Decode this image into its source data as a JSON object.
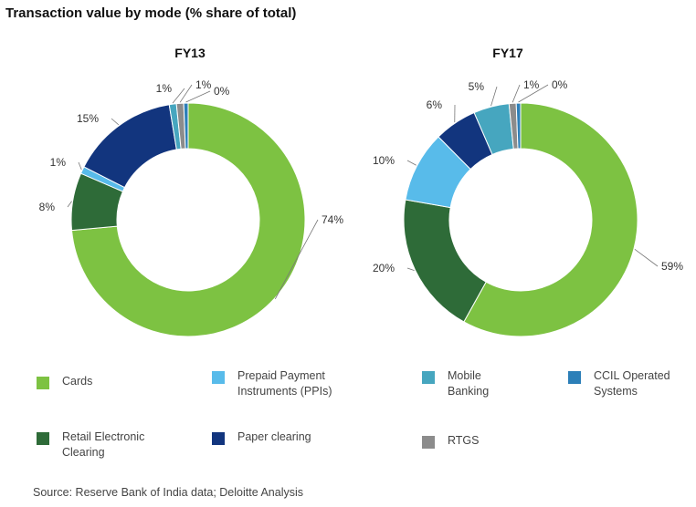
{
  "title": "Transaction value by mode (% share of total)",
  "source": "Source: Reserve Bank of India data; Deloitte Analysis",
  "legend": [
    {
      "label": "Cards",
      "color": "#7DC242"
    },
    {
      "label": "Prepaid Payment Instruments (PPIs)",
      "color": "#58BBEA"
    },
    {
      "label": "Mobile Banking",
      "color": "#46A6BF"
    },
    {
      "label": "CCIL Operated Systems",
      "color": "#2C7FB8"
    },
    {
      "label": "Retail Electronic Clearing",
      "color": "#2E6B38"
    },
    {
      "label": "Paper clearing",
      "color": "#12357E"
    },
    {
      "label": "RTGS",
      "color": "#8C8C8C"
    }
  ],
  "chart_data": [
    {
      "type": "pie",
      "donut": true,
      "title": "FY13",
      "slices": [
        {
          "name": "Cards",
          "value": 74,
          "label": "74%",
          "color": "#7DC242"
        },
        {
          "name": "Retail Electronic Clearing",
          "value": 8,
          "label": "8%",
          "color": "#2E6B38"
        },
        {
          "name": "Prepaid Payment Instruments (PPIs)",
          "value": 1,
          "label": "1%",
          "color": "#58BBEA"
        },
        {
          "name": "Paper clearing",
          "value": 15,
          "label": "15%",
          "color": "#12357E"
        },
        {
          "name": "Mobile Banking",
          "value": 1,
          "label": "1%",
          "color": "#46A6BF"
        },
        {
          "name": "RTGS",
          "value": 1,
          "label": "1%",
          "color": "#8C8C8C"
        },
        {
          "name": "CCIL Operated Systems",
          "value": 0,
          "label": "0%",
          "color": "#2C7FB8"
        }
      ]
    },
    {
      "type": "pie",
      "donut": true,
      "title": "FY17",
      "slices": [
        {
          "name": "Cards",
          "value": 59,
          "label": "59%",
          "color": "#7DC242"
        },
        {
          "name": "Retail Electronic Clearing",
          "value": 20,
          "label": "20%",
          "color": "#2E6B38"
        },
        {
          "name": "Prepaid Payment Instruments (PPIs)",
          "value": 10,
          "label": "10%",
          "color": "#58BBEA"
        },
        {
          "name": "Paper clearing",
          "value": 6,
          "label": "6%",
          "color": "#12357E"
        },
        {
          "name": "Mobile Banking",
          "value": 5,
          "label": "5%",
          "color": "#46A6BF"
        },
        {
          "name": "RTGS",
          "value": 1,
          "label": "1%",
          "color": "#8C8C8C"
        },
        {
          "name": "CCIL Operated Systems",
          "value": 0,
          "label": "0%",
          "color": "#2C7FB8"
        }
      ]
    }
  ]
}
